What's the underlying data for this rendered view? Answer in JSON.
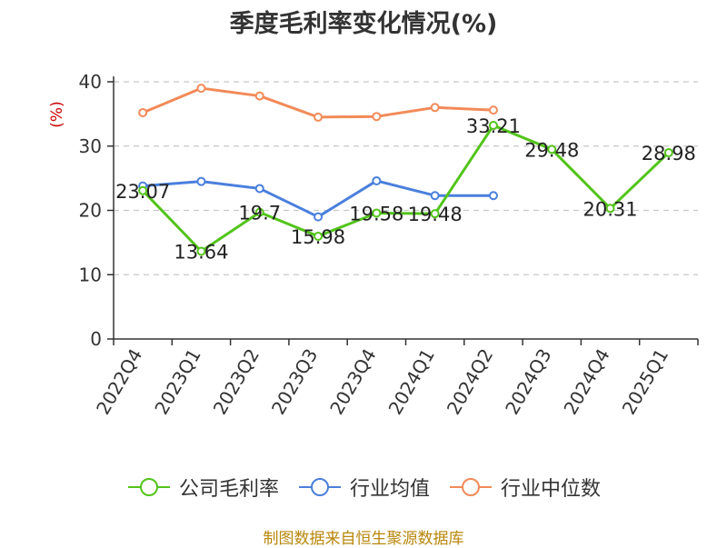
{
  "chart_data": {
    "type": "line",
    "title": "季度毛利率变化情况(%)",
    "ylabel": "(%)",
    "xlabel": "",
    "categories": [
      "2022Q4",
      "2023Q1",
      "2023Q2",
      "2023Q3",
      "2023Q4",
      "2024Q1",
      "2024Q2",
      "2024Q3",
      "2024Q4",
      "2025Q1"
    ],
    "ylim": [
      0,
      40
    ],
    "yticks": [
      0,
      10,
      20,
      30,
      40
    ],
    "grid": true,
    "legend_position": "bottom",
    "series": [
      {
        "name": "公司毛利率",
        "color": "#52c41a",
        "values": [
          23.07,
          13.64,
          19.7,
          15.98,
          19.58,
          19.48,
          33.21,
          29.48,
          20.31,
          28.98
        ],
        "labels": [
          "23.07",
          "13.64",
          "19.7",
          "15.98",
          "19.58",
          "19.48",
          "33.21",
          "29.48",
          "20.31",
          "28.98"
        ]
      },
      {
        "name": "行业均值",
        "color": "#4a7fdd",
        "values": [
          23.8,
          24.5,
          23.4,
          19.0,
          24.6,
          22.3,
          22.3,
          null,
          null,
          null
        ]
      },
      {
        "name": "行业中位数",
        "color": "#f28a58",
        "values": [
          35.2,
          39.0,
          37.8,
          34.5,
          34.6,
          36.0,
          35.6,
          null,
          null,
          null
        ]
      }
    ]
  },
  "source": "制图数据来自恒生聚源数据库"
}
